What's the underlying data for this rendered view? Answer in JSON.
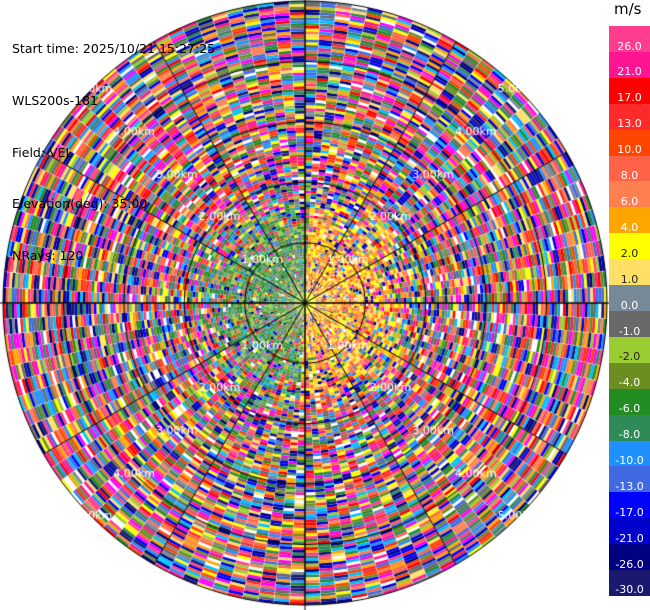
{
  "info": {
    "start_time": "Start time: 2025/10/21 15:27:25",
    "instrument": "WLS200s-181",
    "field": "Field: VEL",
    "elevation": "Elevation(deg): 35.00",
    "nrays": "NRays: 120"
  },
  "colorbar": {
    "unit": "m/s",
    "ticks": [
      "26.0",
      "21.0",
      "17.0",
      "13.0",
      "10.0",
      "8.0",
      "6.0",
      "4.0",
      "2.0",
      "1.0",
      "0.0",
      "-1.0",
      "-2.0",
      "-4.0",
      "-6.0",
      "-8.0",
      "-10.0",
      "-13.0",
      "-17.0",
      "-21.0",
      "-26.0",
      "-30.0"
    ],
    "colors": [
      "#ff3d8e",
      "#ff1493",
      "#ff0000",
      "#ff2a2a",
      "#ff4500",
      "#ff6347",
      "#ff7f50",
      "#ffa500",
      "#ffff00",
      "#ffe066",
      "#778899",
      "#696969",
      "#9acd32",
      "#6b8e23",
      "#228b22",
      "#2e8b57",
      "#1e90ff",
      "#4169e1",
      "#0000ff",
      "#0000cd",
      "#000080",
      "#191970"
    ]
  },
  "range_labels": [
    "1.00km",
    "2.00km",
    "3.00km",
    "4.00km",
    "5.00km"
  ],
  "plot": {
    "rings_km": [
      1,
      2,
      3,
      4,
      5
    ],
    "max_range_km": 5,
    "nrays": 120
  }
}
